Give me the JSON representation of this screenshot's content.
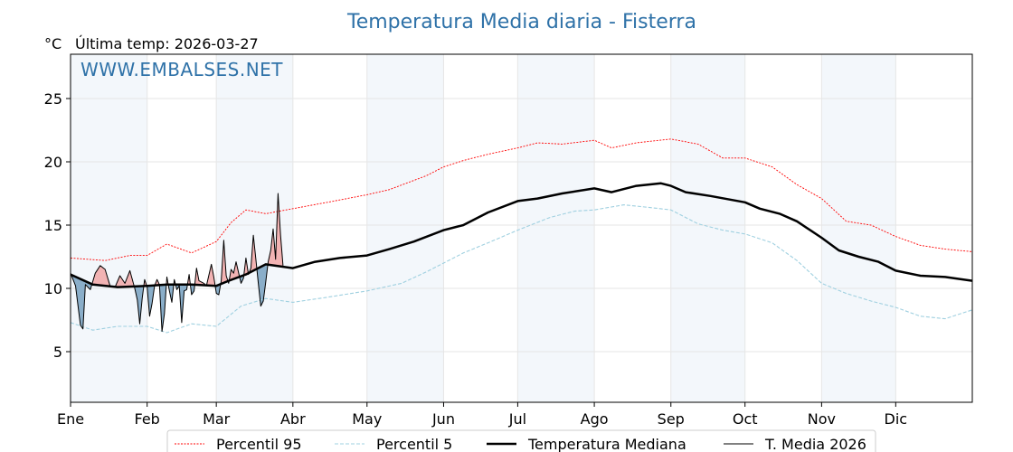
{
  "chart_data": {
    "type": "line",
    "title": "Temperatura Media diaria - Fisterra",
    "unit_label": "°C",
    "last_temp_label": "Última temp: 2026-03-27",
    "watermark": "WWW.EMBALSES.NET",
    "ylim": [
      1,
      28.5
    ],
    "xlim": [
      1,
      366
    ],
    "y_ticks": [
      5,
      10,
      15,
      20,
      25
    ],
    "x_ticks": [
      {
        "day": 1,
        "label": "Ene"
      },
      {
        "day": 32,
        "label": "Feb"
      },
      {
        "day": 60,
        "label": "Mar"
      },
      {
        "day": 91,
        "label": "Abr"
      },
      {
        "day": 121,
        "label": "May"
      },
      {
        "day": 152,
        "label": "Jun"
      },
      {
        "day": 182,
        "label": "Jul"
      },
      {
        "day": 213,
        "label": "Ago"
      },
      {
        "day": 244,
        "label": "Sep"
      },
      {
        "day": 274,
        "label": "Oct"
      },
      {
        "day": 305,
        "label": "Nov"
      },
      {
        "day": 335,
        "label": "Dic"
      }
    ],
    "shaded_months": [
      [
        1,
        32
      ],
      [
        60,
        91
      ],
      [
        121,
        152
      ],
      [
        182,
        213
      ],
      [
        244,
        274
      ],
      [
        305,
        335
      ]
    ],
    "grid": true,
    "legend_position": "bottom",
    "series": [
      {
        "name": "Percentil 95",
        "color": "#ff0000",
        "style": "dotted",
        "points": [
          [
            1,
            12.4
          ],
          [
            15,
            12.2
          ],
          [
            25,
            12.6
          ],
          [
            32,
            12.6
          ],
          [
            40,
            13.5
          ],
          [
            50,
            12.8
          ],
          [
            60,
            13.7
          ],
          [
            66,
            15.2
          ],
          [
            72,
            16.2
          ],
          [
            80,
            15.9
          ],
          [
            91,
            16.3
          ],
          [
            105,
            16.8
          ],
          [
            121,
            17.4
          ],
          [
            130,
            17.8
          ],
          [
            145,
            18.9
          ],
          [
            152,
            19.6
          ],
          [
            160,
            20.1
          ],
          [
            170,
            20.6
          ],
          [
            182,
            21.1
          ],
          [
            190,
            21.5
          ],
          [
            200,
            21.4
          ],
          [
            213,
            21.7
          ],
          [
            220,
            21.1
          ],
          [
            230,
            21.5
          ],
          [
            244,
            21.8
          ],
          [
            255,
            21.4
          ],
          [
            265,
            20.3
          ],
          [
            274,
            20.3
          ],
          [
            285,
            19.6
          ],
          [
            295,
            18.2
          ],
          [
            305,
            17.1
          ],
          [
            315,
            15.3
          ],
          [
            325,
            15.0
          ],
          [
            335,
            14.1
          ],
          [
            345,
            13.4
          ],
          [
            355,
            13.1
          ],
          [
            366,
            12.9
          ]
        ]
      },
      {
        "name": "Percentil 5",
        "color": "#9fd0e0",
        "style": "dashed",
        "points": [
          [
            1,
            7.3
          ],
          [
            10,
            6.7
          ],
          [
            20,
            7.0
          ],
          [
            32,
            7.0
          ],
          [
            40,
            6.5
          ],
          [
            50,
            7.2
          ],
          [
            60,
            7.0
          ],
          [
            70,
            8.6
          ],
          [
            80,
            9.2
          ],
          [
            91,
            8.9
          ],
          [
            105,
            9.3
          ],
          [
            121,
            9.8
          ],
          [
            135,
            10.4
          ],
          [
            145,
            11.3
          ],
          [
            152,
            12.0
          ],
          [
            160,
            12.8
          ],
          [
            170,
            13.6
          ],
          [
            182,
            14.6
          ],
          [
            195,
            15.6
          ],
          [
            205,
            16.1
          ],
          [
            213,
            16.2
          ],
          [
            225,
            16.6
          ],
          [
            235,
            16.4
          ],
          [
            244,
            16.2
          ],
          [
            255,
            15.1
          ],
          [
            265,
            14.6
          ],
          [
            274,
            14.3
          ],
          [
            285,
            13.6
          ],
          [
            295,
            12.2
          ],
          [
            305,
            10.4
          ],
          [
            315,
            9.6
          ],
          [
            325,
            9.0
          ],
          [
            335,
            8.5
          ],
          [
            345,
            7.8
          ],
          [
            355,
            7.6
          ],
          [
            366,
            8.3
          ]
        ]
      },
      {
        "name": "Temperatura Mediana",
        "color": "#000000",
        "style": "solid-thick",
        "points": [
          [
            1,
            11.1
          ],
          [
            10,
            10.3
          ],
          [
            20,
            10.1
          ],
          [
            32,
            10.2
          ],
          [
            40,
            10.3
          ],
          [
            50,
            10.3
          ],
          [
            60,
            10.2
          ],
          [
            65,
            10.6
          ],
          [
            72,
            11.1
          ],
          [
            80,
            11.9
          ],
          [
            91,
            11.6
          ],
          [
            100,
            12.1
          ],
          [
            110,
            12.4
          ],
          [
            121,
            12.6
          ],
          [
            130,
            13.1
          ],
          [
            140,
            13.7
          ],
          [
            152,
            14.6
          ],
          [
            160,
            15.0
          ],
          [
            170,
            16.0
          ],
          [
            182,
            16.9
          ],
          [
            190,
            17.1
          ],
          [
            200,
            17.5
          ],
          [
            213,
            17.9
          ],
          [
            220,
            17.6
          ],
          [
            230,
            18.1
          ],
          [
            240,
            18.3
          ],
          [
            244,
            18.1
          ],
          [
            250,
            17.6
          ],
          [
            260,
            17.3
          ],
          [
            274,
            16.8
          ],
          [
            280,
            16.3
          ],
          [
            288,
            15.9
          ],
          [
            295,
            15.3
          ],
          [
            305,
            14.0
          ],
          [
            312,
            13.0
          ],
          [
            320,
            12.5
          ],
          [
            328,
            12.1
          ],
          [
            335,
            11.4
          ],
          [
            345,
            11.0
          ],
          [
            355,
            10.9
          ],
          [
            366,
            10.6
          ]
        ]
      },
      {
        "name": "T. Media 2026",
        "color": "#000000",
        "style": "solid-thin",
        "fill_above_color": "#f2b3b3",
        "fill_below_color": "#8aaec9",
        "points": [
          [
            1,
            11.2
          ],
          [
            3,
            10.2
          ],
          [
            5,
            7.1
          ],
          [
            6,
            6.8
          ],
          [
            7,
            10.3
          ],
          [
            9,
            9.9
          ],
          [
            11,
            11.2
          ],
          [
            13,
            11.8
          ],
          [
            15,
            11.5
          ],
          [
            17,
            10.2
          ],
          [
            19,
            10.1
          ],
          [
            21,
            11.0
          ],
          [
            23,
            10.4
          ],
          [
            25,
            11.4
          ],
          [
            27,
            10.0
          ],
          [
            28,
            9.1
          ],
          [
            29,
            7.2
          ],
          [
            30,
            9.2
          ],
          [
            31,
            10.7
          ],
          [
            32,
            10.1
          ],
          [
            33,
            7.8
          ],
          [
            34,
            8.8
          ],
          [
            35,
            10.2
          ],
          [
            36,
            10.7
          ],
          [
            37,
            10.3
          ],
          [
            38,
            6.6
          ],
          [
            39,
            8.0
          ],
          [
            40,
            10.9
          ],
          [
            41,
            9.8
          ],
          [
            42,
            8.9
          ],
          [
            43,
            10.7
          ],
          [
            44,
            9.9
          ],
          [
            45,
            10.2
          ],
          [
            46,
            7.3
          ],
          [
            47,
            9.8
          ],
          [
            48,
            9.9
          ],
          [
            49,
            11.1
          ],
          [
            50,
            9.5
          ],
          [
            51,
            9.8
          ],
          [
            52,
            11.6
          ],
          [
            53,
            10.6
          ],
          [
            55,
            10.4
          ],
          [
            56,
            10.2
          ],
          [
            58,
            11.9
          ],
          [
            59,
            10.9
          ],
          [
            60,
            9.6
          ],
          [
            61,
            9.5
          ],
          [
            62,
            10.6
          ],
          [
            63,
            13.8
          ],
          [
            64,
            11.0
          ],
          [
            65,
            10.4
          ],
          [
            66,
            11.5
          ],
          [
            67,
            11.2
          ],
          [
            68,
            12.1
          ],
          [
            70,
            10.4
          ],
          [
            71,
            10.8
          ],
          [
            72,
            12.4
          ],
          [
            73,
            11.1
          ],
          [
            74,
            11.6
          ],
          [
            75,
            14.2
          ],
          [
            76,
            12.3
          ],
          [
            77,
            10.4
          ],
          [
            78,
            8.6
          ],
          [
            79,
            9.0
          ],
          [
            80,
            10.5
          ],
          [
            81,
            12.1
          ],
          [
            82,
            13.0
          ],
          [
            83,
            14.7
          ],
          [
            84,
            12.3
          ],
          [
            85,
            17.5
          ],
          [
            86,
            14.2
          ],
          [
            87,
            11.8
          ]
        ]
      }
    ]
  },
  "legend": [
    {
      "label": "Percentil 95",
      "color": "#ff0000",
      "style": "dotted"
    },
    {
      "label": "Percentil 5",
      "color": "#9fd0e0",
      "style": "dashed"
    },
    {
      "label": "Temperatura Mediana",
      "color": "#000000",
      "style": "solid-thick"
    },
    {
      "label": "T. Media 2026",
      "color": "#000000",
      "style": "solid-thin"
    }
  ]
}
